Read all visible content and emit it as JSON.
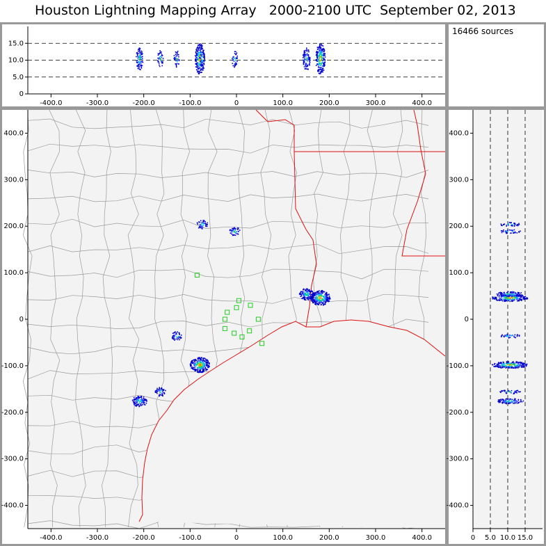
{
  "title": "Houston Lightning Mapping Array   2000-2100 UTC  September 02, 2013",
  "sources_label": "16466 sources",
  "colors": {
    "frame": "#999999",
    "plot_bg": "#f3f3f3",
    "county_lines": "#9a9a9a",
    "state_border": "#dd1111",
    "coast": "#dd1111",
    "stations": "#22cc22",
    "dashed_lines": "#000000"
  },
  "chart_data": [
    {
      "name": "plan_view",
      "type": "scatter",
      "xlabel": "",
      "ylabel": "",
      "xlim": [
        -450,
        450
      ],
      "ylim": [
        -450,
        450
      ],
      "x_ticks": [
        -400,
        -300,
        -200,
        -100,
        0,
        100,
        200,
        300,
        400
      ],
      "x_tick_labels": [
        "-400.0",
        "-300.0",
        "-200.0",
        "-100.0",
        "0",
        "100.0",
        "200.0",
        "300.0",
        "400.0"
      ],
      "y_ticks": [
        400,
        300,
        200,
        100,
        0,
        -100,
        -200,
        -300,
        -400
      ],
      "y_tick_labels": [
        "400.0",
        "300.0",
        "200.0",
        "100.0",
        "0",
        "-100.0",
        "-200.0",
        "-300.0",
        "-400.0"
      ],
      "lightning_cells_km": [
        {
          "x": -80,
          "y": -97,
          "density": "high"
        },
        {
          "x": 180,
          "y": 47,
          "density": "high"
        },
        {
          "x": 150,
          "y": 55,
          "density": "medium"
        },
        {
          "x": -210,
          "y": -175,
          "density": "medium"
        },
        {
          "x": -165,
          "y": -155,
          "density": "low"
        },
        {
          "x": -75,
          "y": 205,
          "density": "low"
        },
        {
          "x": -5,
          "y": 190,
          "density": "low"
        },
        {
          "x": -130,
          "y": -35,
          "density": "low"
        }
      ],
      "stations_km": [
        {
          "x": -85,
          "y": 95
        },
        {
          "x": -20,
          "y": 15
        },
        {
          "x": 5,
          "y": 40
        },
        {
          "x": 30,
          "y": 30
        },
        {
          "x": 0,
          "y": 25
        },
        {
          "x": -25,
          "y": 0
        },
        {
          "x": -25,
          "y": -20
        },
        {
          "x": -5,
          "y": -30
        },
        {
          "x": 12,
          "y": -38
        },
        {
          "x": 28,
          "y": -25
        },
        {
          "x": 47,
          "y": 0
        },
        {
          "x": 55,
          "y": -52
        }
      ]
    },
    {
      "name": "east_west_altitude",
      "type": "scatter",
      "xlim": [
        -450,
        450
      ],
      "ylim": [
        0,
        20
      ],
      "x_ticks": [
        -400,
        -300,
        -200,
        -100,
        0,
        100,
        200,
        300,
        400
      ],
      "x_tick_labels": [
        "-400.0",
        "-300.0",
        "-200.0",
        "-100.0",
        "0",
        "100.0",
        "200.0",
        "300.0",
        "400.0"
      ],
      "y_ticks": [
        15,
        10,
        5,
        0
      ],
      "y_tick_labels": [
        "15.0",
        "10.0",
        "5.0",
        "0"
      ],
      "dashed_levels": [
        15,
        10,
        5
      ]
    },
    {
      "name": "altitude_north_south",
      "type": "scatter",
      "xlim": [
        0,
        20
      ],
      "ylim": [
        -450,
        450
      ],
      "x_ticks": [
        0,
        5,
        10,
        15
      ],
      "x_tick_labels": [
        "0",
        "5.0",
        "10.0",
        "15.0"
      ],
      "y_ticks": [
        400,
        300,
        200,
        100,
        0,
        -100,
        -200,
        -300,
        -400
      ],
      "y_tick_labels": [
        "400.0",
        "300.0",
        "200.0",
        "100.0",
        "0",
        "-100.0",
        "-200.0",
        "-300.0",
        "-400.0"
      ],
      "dashed_levels": [
        5,
        10,
        15
      ]
    }
  ]
}
